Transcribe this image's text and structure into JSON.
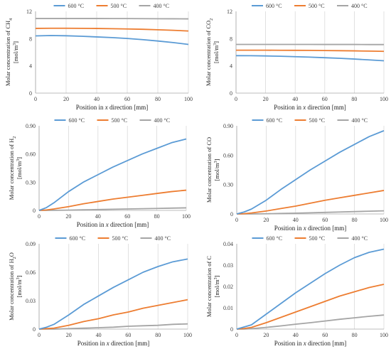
{
  "legend": [
    "600 °C",
    "500 °C",
    "400 °C"
  ],
  "colors": {
    "s600": "#5b9bd5",
    "s500": "#ed7d31",
    "s400": "#a5a5a5"
  },
  "x_label_parts": [
    "Position in ",
    "x",
    " direction [mm]"
  ],
  "chart_data": [
    {
      "type": "line",
      "ylabel": "Molar concentration of CH4 [mol/m3]",
      "ylabel_main": "Molar concentration of CH",
      "ylabel_sub": "4",
      "unit_main": "[mol/m",
      "unit_sup": "3",
      "unit_end": "]",
      "xlabel": "Position in x direction [mm]",
      "xlim": [
        0,
        100
      ],
      "xticks": [
        0,
        20,
        40,
        60,
        80,
        100
      ],
      "xtick_labels": [
        "0",
        "20",
        "40",
        "60",
        "80",
        "100"
      ],
      "ylim": [
        0,
        12
      ],
      "yticks": [
        0,
        4,
        8,
        12
      ],
      "ytick_labels": [
        "0",
        "4",
        "8",
        "12"
      ],
      "x": [
        0,
        10,
        20,
        30,
        40,
        50,
        60,
        70,
        80,
        90,
        100
      ],
      "series": [
        {
          "name": "600 °C",
          "values": [
            8.4,
            8.45,
            8.42,
            8.35,
            8.25,
            8.15,
            8.02,
            7.85,
            7.65,
            7.42,
            7.15
          ]
        },
        {
          "name": "500 °C",
          "values": [
            9.5,
            9.52,
            9.52,
            9.51,
            9.49,
            9.46,
            9.42,
            9.37,
            9.3,
            9.22,
            9.12
          ]
        },
        {
          "name": "400 °C",
          "values": [
            10.95,
            10.95,
            10.95,
            10.95,
            10.95,
            10.94,
            10.94,
            10.93,
            10.92,
            10.91,
            10.9
          ]
        }
      ]
    },
    {
      "type": "line",
      "ylabel": "Molar concentration of CO2 [mol/m3]",
      "ylabel_main": "Molar concentration of CO",
      "ylabel_sub": "2",
      "unit_main": "[mol/m",
      "unit_sup": "3",
      "unit_end": "]",
      "xlabel": "Position in x direction [mm]",
      "xlim": [
        0,
        100
      ],
      "xticks": [
        0,
        20,
        40,
        60,
        80,
        100
      ],
      "xtick_labels": [
        "0",
        "20",
        "40",
        "60",
        "80",
        "100"
      ],
      "ylim": [
        0,
        12
      ],
      "yticks": [
        0,
        4,
        8,
        12
      ],
      "ytick_labels": [
        "0",
        "4",
        "8",
        "12"
      ],
      "x": [
        0,
        10,
        20,
        30,
        40,
        50,
        60,
        70,
        80,
        90,
        100
      ],
      "series": [
        {
          "name": "600 °C",
          "values": [
            5.5,
            5.49,
            5.46,
            5.41,
            5.35,
            5.28,
            5.2,
            5.11,
            5.0,
            4.88,
            4.75
          ]
        },
        {
          "name": "500 °C",
          "values": [
            6.3,
            6.3,
            6.3,
            6.29,
            6.28,
            6.27,
            6.25,
            6.23,
            6.2,
            6.17,
            6.13
          ]
        },
        {
          "name": "400 °C",
          "values": [
            7.15,
            7.15,
            7.15,
            7.15,
            7.15,
            7.15,
            7.14,
            7.14,
            7.14,
            7.13,
            7.13
          ]
        }
      ]
    },
    {
      "type": "line",
      "ylabel": "Molar concentration of H2 [mol/m3]",
      "ylabel_main": "Molar concentration of H",
      "ylabel_sub": "2",
      "unit_main": "[mol/m",
      "unit_sup": "3",
      "unit_end": "]",
      "xlabel": "Position in x direction [mm]",
      "xlim": [
        0,
        100
      ],
      "xticks": [
        0,
        20,
        40,
        60,
        80,
        100
      ],
      "xtick_labels": [
        "0",
        "20",
        "40",
        "60",
        "80",
        "100"
      ],
      "ylim": [
        0,
        0.9
      ],
      "yticks": [
        0,
        0.3,
        0.6,
        0.9
      ],
      "ytick_labels": [
        "0",
        "0.30",
        "0.60",
        "0.90"
      ],
      "x": [
        0,
        5,
        10,
        20,
        30,
        40,
        50,
        60,
        70,
        80,
        90,
        100
      ],
      "series": [
        {
          "name": "600 °C",
          "values": [
            0.0,
            0.03,
            0.08,
            0.2,
            0.3,
            0.38,
            0.46,
            0.53,
            0.6,
            0.66,
            0.72,
            0.76
          ]
        },
        {
          "name": "500 °C",
          "values": [
            0.0,
            0.005,
            0.015,
            0.04,
            0.07,
            0.095,
            0.12,
            0.14,
            0.16,
            0.18,
            0.2,
            0.215
          ]
        },
        {
          "name": "400 °C",
          "values": [
            0.0,
            0.0,
            0.001,
            0.003,
            0.006,
            0.009,
            0.012,
            0.015,
            0.018,
            0.021,
            0.024,
            0.027
          ]
        }
      ]
    },
    {
      "type": "line",
      "ylabel": "Molar concentration of CO [mol/m3]",
      "ylabel_main": "Molar concentration of CO",
      "ylabel_sub": "",
      "unit_main": "[mol/m",
      "unit_sup": "3",
      "unit_end": "]",
      "xlabel": "Position in x direction [mm]",
      "xlim": [
        0,
        100
      ],
      "xticks": [
        0,
        20,
        40,
        60,
        80,
        100
      ],
      "xtick_labels": [
        "0",
        "20",
        "40",
        "60",
        "80",
        "100"
      ],
      "ylim": [
        0,
        0.9
      ],
      "yticks": [
        0,
        0.3,
        0.6,
        0.9
      ],
      "ytick_labels": [
        "0",
        "0.30",
        "0.60",
        "0.90"
      ],
      "x": [
        0,
        5,
        10,
        20,
        30,
        40,
        50,
        60,
        70,
        80,
        90,
        100
      ],
      "series": [
        {
          "name": "600 °C",
          "values": [
            0.0,
            0.02,
            0.05,
            0.14,
            0.25,
            0.35,
            0.45,
            0.54,
            0.63,
            0.71,
            0.79,
            0.85
          ]
        },
        {
          "name": "500 °C",
          "values": [
            0.0,
            0.003,
            0.01,
            0.03,
            0.055,
            0.08,
            0.11,
            0.14,
            0.165,
            0.19,
            0.215,
            0.24
          ]
        },
        {
          "name": "400 °C",
          "values": [
            0.0,
            0.0,
            0.0,
            0.002,
            0.005,
            0.008,
            0.012,
            0.016,
            0.02,
            0.024,
            0.028,
            0.032
          ]
        }
      ]
    },
    {
      "type": "line",
      "ylabel": "Molar concentration of H2O [mol/m3]",
      "ylabel_main": "Molar concentration of H",
      "ylabel_sub": "2",
      "ylabel_after": "O",
      "unit_main": "[mol/m",
      "unit_sup": "3",
      "unit_end": "]",
      "xlabel": "Position in x direction [mm]",
      "xlim": [
        0,
        100
      ],
      "xticks": [
        0,
        20,
        40,
        60,
        80,
        100
      ],
      "xtick_labels": [
        "0",
        "20",
        "40",
        "60",
        "80",
        "100"
      ],
      "ylim": [
        0,
        0.09
      ],
      "yticks": [
        0,
        0.03,
        0.06,
        0.09
      ],
      "ytick_labels": [
        "0",
        "0.03",
        "0.06",
        "0.09"
      ],
      "x": [
        0,
        5,
        10,
        20,
        30,
        40,
        50,
        60,
        70,
        80,
        90,
        100
      ],
      "series": [
        {
          "name": "600 °C",
          "values": [
            0.0,
            0.002,
            0.005,
            0.015,
            0.026,
            0.035,
            0.044,
            0.052,
            0.06,
            0.066,
            0.071,
            0.074
          ]
        },
        {
          "name": "500 °C",
          "values": [
            0.0,
            0.0005,
            0.001,
            0.004,
            0.008,
            0.011,
            0.015,
            0.018,
            0.022,
            0.025,
            0.028,
            0.031
          ]
        },
        {
          "name": "400 °C",
          "values": [
            0.0,
            0.0,
            0.0,
            0.0005,
            0.001,
            0.0015,
            0.002,
            0.003,
            0.0035,
            0.004,
            0.005,
            0.0055
          ]
        }
      ]
    },
    {
      "type": "line",
      "ylabel": "Molar concentration of C [mol/m3]",
      "ylabel_main": "Molar concentration of C",
      "ylabel_sub": "",
      "unit_main": "[mol/m",
      "unit_sup": "3",
      "unit_end": "]",
      "xlabel": "Position in x direction [mm]",
      "xlim": [
        0,
        100
      ],
      "xticks": [
        0,
        20,
        40,
        60,
        80,
        100
      ],
      "xtick_labels": [
        "0",
        "20",
        "40",
        "60",
        "80",
        "100"
      ],
      "ylim": [
        0,
        0.04
      ],
      "yticks": [
        0,
        0.01,
        0.02,
        0.03,
        0.04
      ],
      "ytick_labels": [
        "0",
        "0.01",
        "0.02",
        "0.03",
        "0.04"
      ],
      "x": [
        0,
        5,
        10,
        20,
        30,
        40,
        50,
        60,
        70,
        80,
        90,
        100
      ],
      "series": [
        {
          "name": "600 °C",
          "values": [
            0.0,
            0.001,
            0.002,
            0.007,
            0.012,
            0.017,
            0.0215,
            0.026,
            0.03,
            0.0335,
            0.036,
            0.0375
          ]
        },
        {
          "name": "500 °C",
          "values": [
            0.0,
            0.0003,
            0.0008,
            0.003,
            0.0055,
            0.008,
            0.0105,
            0.013,
            0.0155,
            0.0175,
            0.0195,
            0.021
          ]
        },
        {
          "name": "400 °C",
          "values": [
            0.0,
            0.0,
            0.0002,
            0.0008,
            0.0015,
            0.0023,
            0.003,
            0.0038,
            0.0046,
            0.0053,
            0.006,
            0.0066
          ]
        }
      ]
    }
  ]
}
